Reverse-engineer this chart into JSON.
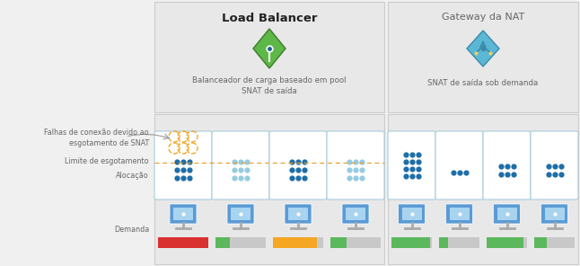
{
  "bg_color": "#f0f0f0",
  "panel_color": "#e8e8e8",
  "panel_color2": "#ebebeb",
  "border_color": "#cccccc",
  "white": "#ffffff",
  "lb_title": "Load Balancer",
  "lb_subtitle1": "Balanceador de carga baseado em pool",
  "lb_subtitle2": "SNAT de saída",
  "nat_title": "Gateway da NAT",
  "nat_subtitle": "SNAT de saída sob demanda",
  "label_connection_fail": "Falhas de conexão devido ao\nesgotamento de SNAT",
  "label_limit": "Limite de esgotamento",
  "label_allocation": "Alocação",
  "label_demand": "Demanda",
  "dot_dark_blue": "#1e6ea8",
  "dot_light_blue": "#96cce0",
  "dot_orange_outline": "#f5a623",
  "monitor_blue": "#5b9bd5",
  "monitor_light": "#a8d4f0",
  "bar_red": "#d93030",
  "bar_orange": "#f5a623",
  "bar_green": "#5cb85c",
  "bar_gray": "#c8c8c8",
  "text_color": "#666666",
  "title_color": "#222222",
  "dashed_line_color": "#e8a030",
  "lb_icon_green": "#5db847",
  "lb_icon_dark_green": "#3a7d2c",
  "nat_icon_blue": "#5bb8d4",
  "nat_icon_dark": "#3a8aaa",
  "nat_icon_yellow": "#f0d060"
}
